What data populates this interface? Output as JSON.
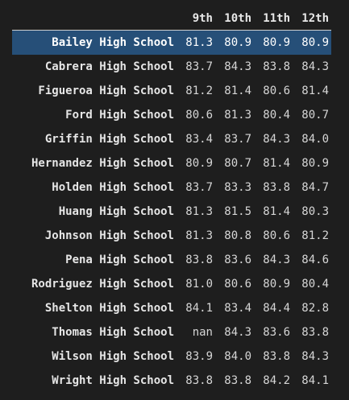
{
  "columns": [
    "9th",
    "10th",
    "11th",
    "12th"
  ],
  "rows": [
    {
      "school": "Bailey High School",
      "values": [
        "81.3",
        "80.9",
        "80.9",
        "80.9"
      ],
      "selected": true
    },
    {
      "school": "Cabrera High School",
      "values": [
        "83.7",
        "84.3",
        "83.8",
        "84.3"
      ]
    },
    {
      "school": "Figueroa High School",
      "values": [
        "81.2",
        "81.4",
        "80.6",
        "81.4"
      ]
    },
    {
      "school": "Ford High School",
      "values": [
        "80.6",
        "81.3",
        "80.4",
        "80.7"
      ]
    },
    {
      "school": "Griffin High School",
      "values": [
        "83.4",
        "83.7",
        "84.3",
        "84.0"
      ]
    },
    {
      "school": "Hernandez High School",
      "values": [
        "80.9",
        "80.7",
        "81.4",
        "80.9"
      ]
    },
    {
      "school": "Holden High School",
      "values": [
        "83.7",
        "83.3",
        "83.8",
        "84.7"
      ]
    },
    {
      "school": "Huang High School",
      "values": [
        "81.3",
        "81.5",
        "81.4",
        "80.3"
      ]
    },
    {
      "school": "Johnson High School",
      "values": [
        "81.3",
        "80.8",
        "80.6",
        "81.2"
      ]
    },
    {
      "school": "Pena High School",
      "values": [
        "83.8",
        "83.6",
        "84.3",
        "84.6"
      ]
    },
    {
      "school": "Rodriguez High School",
      "values": [
        "81.0",
        "80.6",
        "80.9",
        "80.4"
      ]
    },
    {
      "school": "Shelton High School",
      "values": [
        "84.1",
        "83.4",
        "84.4",
        "82.8"
      ]
    },
    {
      "school": "Thomas High School",
      "values": [
        "nan",
        "84.3",
        "83.6",
        "83.8"
      ]
    },
    {
      "school": "Wilson High School",
      "values": [
        "83.9",
        "84.0",
        "83.8",
        "84.3"
      ]
    },
    {
      "school": "Wright High School",
      "values": [
        "83.8",
        "83.8",
        "84.2",
        "84.1"
      ]
    }
  ]
}
